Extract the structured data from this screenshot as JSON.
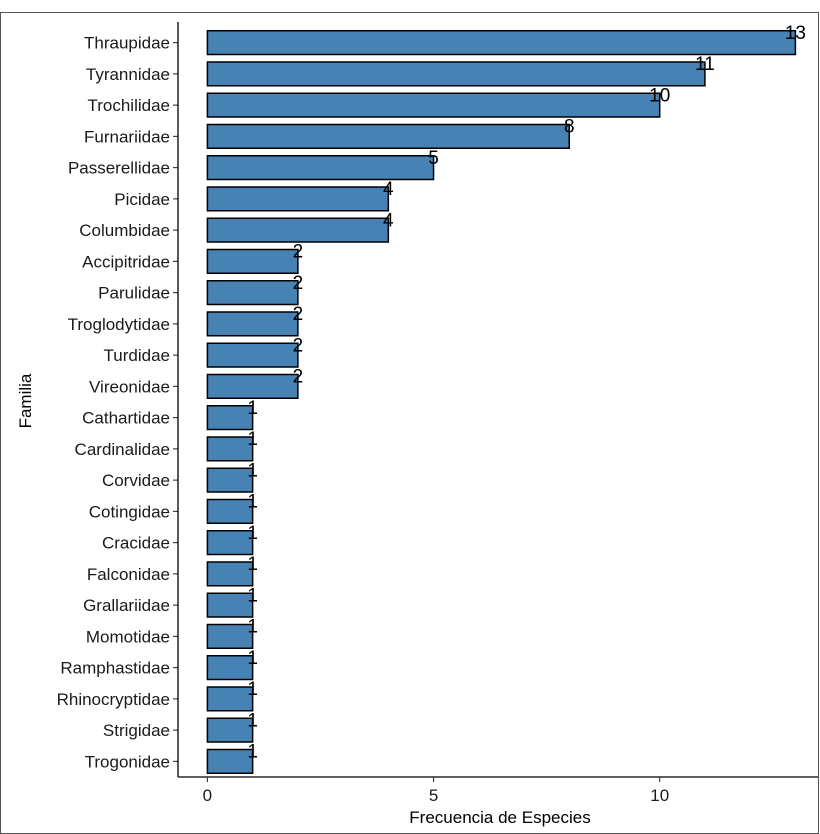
{
  "chart_data": {
    "type": "bar",
    "orientation": "horizontal",
    "categories": [
      "Thraupidae",
      "Tyrannidae",
      "Trochilidae",
      "Furnariidae",
      "Passerellidae",
      "Picidae",
      "Columbidae",
      "Accipitridae",
      "Parulidae",
      "Troglodytidae",
      "Turdidae",
      "Vireonidae",
      "Cathartidae",
      "Cardinalidae",
      "Corvidae",
      "Cotingidae",
      "Cracidae",
      "Falconidae",
      "Grallariidae",
      "Momotidae",
      "Ramphastidae",
      "Rhinocryptidae",
      "Strigidae",
      "Trogonidae"
    ],
    "values": [
      13,
      11,
      10,
      8,
      5,
      4,
      4,
      2,
      2,
      2,
      2,
      2,
      1,
      1,
      1,
      1,
      1,
      1,
      1,
      1,
      1,
      1,
      1,
      1
    ],
    "data_labels": [
      "13",
      "11",
      "10",
      "8",
      "5",
      "4",
      "4",
      "2",
      "2",
      "2",
      "2",
      "2",
      "1",
      "1",
      "1",
      "1",
      "1",
      "1",
      "1",
      "1",
      "1",
      "1",
      "1",
      "1"
    ],
    "title": "",
    "xlabel": "Frecuencia de Especies",
    "ylabel": "Familia",
    "xlim": [
      -0.65,
      13.5
    ],
    "x_ticks": [
      0,
      5,
      10
    ],
    "x_tick_labels": [
      "0",
      "5",
      "10"
    ],
    "grid": false,
    "legend": "none",
    "bar_color": "#4682b4",
    "bar_outline": "#000000"
  }
}
